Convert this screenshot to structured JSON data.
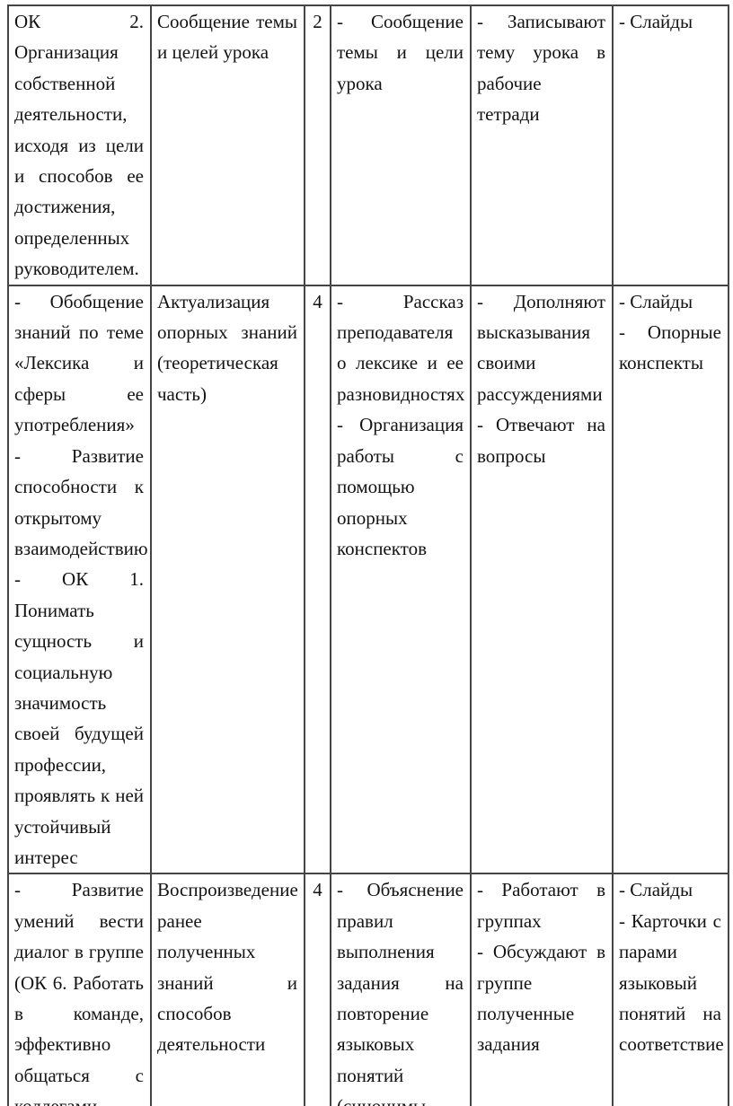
{
  "document": {
    "kind": "lesson-plan-table",
    "language": "ru",
    "page_background": "#ffffff",
    "text_color": "#131313",
    "border_color": "#454545"
  },
  "table": {
    "column_keys": [
      "competencies",
      "lesson-stage",
      "time-minutes",
      "teacher-activity",
      "student-activity",
      "resources"
    ],
    "rows": [
      {
        "cells": [
          [
            "ОК 2. Организация собственной деятельности, исходя из цели и способов ее достижения, определенных руководителем."
          ],
          [
            "Сообщение темы и целей урока"
          ],
          [
            "2"
          ],
          [
            "- Сообщение темы и цели урока"
          ],
          [
            "- Записывают тему урока в рабочие тетради"
          ],
          [
            "- Слайды"
          ]
        ]
      },
      {
        "cells": [
          [
            "- Обобщение знаний по теме «Лексика и сферы ее употребления»",
            "- Развитие способности к открытому взаимодействию",
            "- ОК 1. Понимать сущность и социальную значимость своей будущей профессии, проявлять к ней устойчивый интерес"
          ],
          [
            "Актуализация опорных знаний (теоретическая часть)"
          ],
          [
            "4"
          ],
          [
            "- Рассказ преподавателя о лексике и ее разновидностях",
            "- Организация работы с помощью опорных конспектов"
          ],
          [
            "- Дополняют высказывания своими рассуждениями",
            "- Отвечают на вопросы"
          ],
          [
            "- Слайды",
            "- Опорные конспекты"
          ]
        ]
      },
      {
        "cells": [
          [
            "- Развитие умений вести диалог в группе (ОК 6. Работать в команде, эффективно общаться с коллегами,"
          ],
          [
            "Воспроизведение ранее полученных знаний и способов деятельности"
          ],
          [
            "4"
          ],
          [
            "- Объяснение правил выполнения задания на повторение языковых понятий (синонимы,"
          ],
          [
            "- Работают в группах",
            "- Обсуждают в группе полученные задания"
          ],
          [
            "- Слайды",
            "- Карточки с парами языковый понятий на соответствие"
          ]
        ]
      }
    ]
  }
}
